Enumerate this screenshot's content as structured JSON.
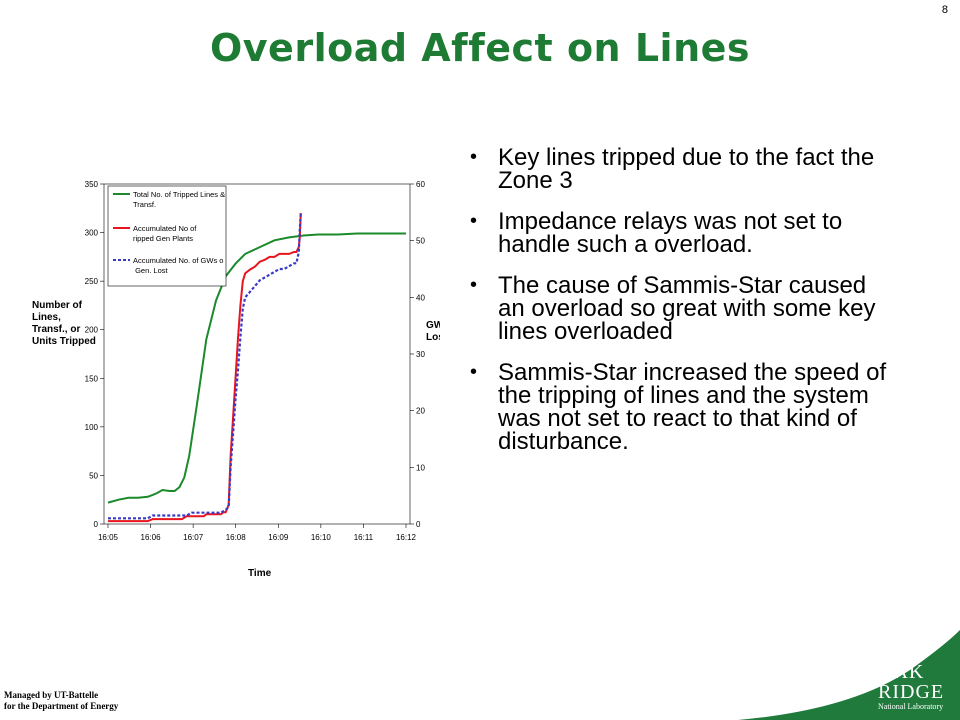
{
  "slide": {
    "number": "8",
    "title": "Overload Affect on Lines"
  },
  "bullets": [
    "Key lines tripped due to the fact the Zone 3",
    "Impedance  relays was not set to handle such a overload.",
    "The cause of Sammis-Star caused an overload so great with some key lines overloaded",
    "Sammis-Star increased the speed of the tripping of lines and the system was not set to react to that kind of disturbance."
  ],
  "footer": {
    "line1": "Managed by UT-Battelle",
    "line2": "for the Department of Energy"
  },
  "logo": {
    "line1": "OAK",
    "line2": "RIDGE",
    "line3": "National Laboratory"
  },
  "colors": {
    "title": "#1e7b34",
    "corner": "#1f7a3c",
    "lines": "#1a8a2a",
    "gen_plants": "#e8141e",
    "gws": "#3a3ac8"
  },
  "chart_data": {
    "type": "line",
    "xlabel": "Time",
    "ylabel": "Number of Lines, Transf., or Units Tripped",
    "y2label": "GW Lost",
    "categories": [
      "16:05",
      "16:06",
      "16:07",
      "16:08",
      "16:09",
      "16:10",
      "16:11",
      "16:12"
    ],
    "ylim": [
      0,
      350
    ],
    "yticks": [
      "0",
      "50",
      "100",
      "150",
      "200",
      "250",
      "300",
      "350"
    ],
    "y2lim": [
      0,
      60
    ],
    "y2ticks": [
      "0",
      "10",
      "20",
      "30",
      "40",
      "50",
      "60"
    ],
    "legend_position": "top-left",
    "series": [
      {
        "name": "Total No. of Tripped Lines & Transf.",
        "axis": "left",
        "x": [
          16.083,
          16.3,
          16.5,
          16.7,
          16.9,
          17.0,
          17.1,
          17.2,
          17.35,
          17.45,
          17.55,
          17.65,
          17.75,
          17.9,
          18.1,
          18.3,
          18.5,
          18.7,
          18.9,
          19.2,
          19.5,
          19.8,
          20.1,
          20.4,
          20.8,
          21.2,
          21.6,
          22.2
        ],
        "values": [
          22,
          25,
          27,
          27,
          28,
          30,
          32,
          35,
          34,
          34,
          38,
          48,
          70,
          120,
          190,
          230,
          255,
          268,
          278,
          285,
          292,
          295,
          297,
          298,
          298,
          299,
          299,
          299
        ]
      },
      {
        "name": "Accumulated No of Tripped Gen Plants",
        "axis": "left",
        "x": [
          16.083,
          16.9,
          17.0,
          17.6,
          17.7,
          18.05,
          18.1,
          18.4,
          18.45,
          18.5,
          18.56,
          18.6,
          18.65,
          18.7,
          18.75,
          18.8,
          18.85,
          18.9,
          19.0,
          19.1,
          19.2,
          19.3,
          19.4,
          19.5,
          19.6,
          19.7,
          19.8,
          19.9,
          19.95,
          20.0,
          20.02,
          20.04
        ],
        "values": [
          3,
          3,
          5,
          5,
          8,
          8,
          10,
          10,
          12,
          12,
          20,
          70,
          110,
          150,
          190,
          225,
          250,
          258,
          262,
          265,
          270,
          272,
          275,
          275,
          278,
          278,
          278,
          280,
          280,
          285,
          295,
          320
        ]
      },
      {
        "name": "Accumulated No. of GWs of Gen. Lost",
        "axis": "right",
        "x": [
          16.083,
          16.9,
          17.0,
          17.7,
          17.8,
          18.4,
          18.5,
          18.56,
          18.6,
          18.65,
          18.7,
          18.75,
          18.8,
          18.85,
          18.9,
          19.0,
          19.1,
          19.2,
          19.3,
          19.4,
          19.5,
          19.6,
          19.7,
          19.8,
          19.9,
          19.95,
          20.0,
          20.02,
          20.04
        ],
        "values": [
          1,
          1,
          1.5,
          1.5,
          2,
          2,
          2.5,
          3,
          10,
          16,
          22,
          27,
          33,
          38,
          40,
          41,
          42,
          43,
          43.5,
          44,
          44.5,
          45,
          45,
          45.5,
          46,
          46,
          48,
          52,
          55
        ]
      }
    ]
  }
}
